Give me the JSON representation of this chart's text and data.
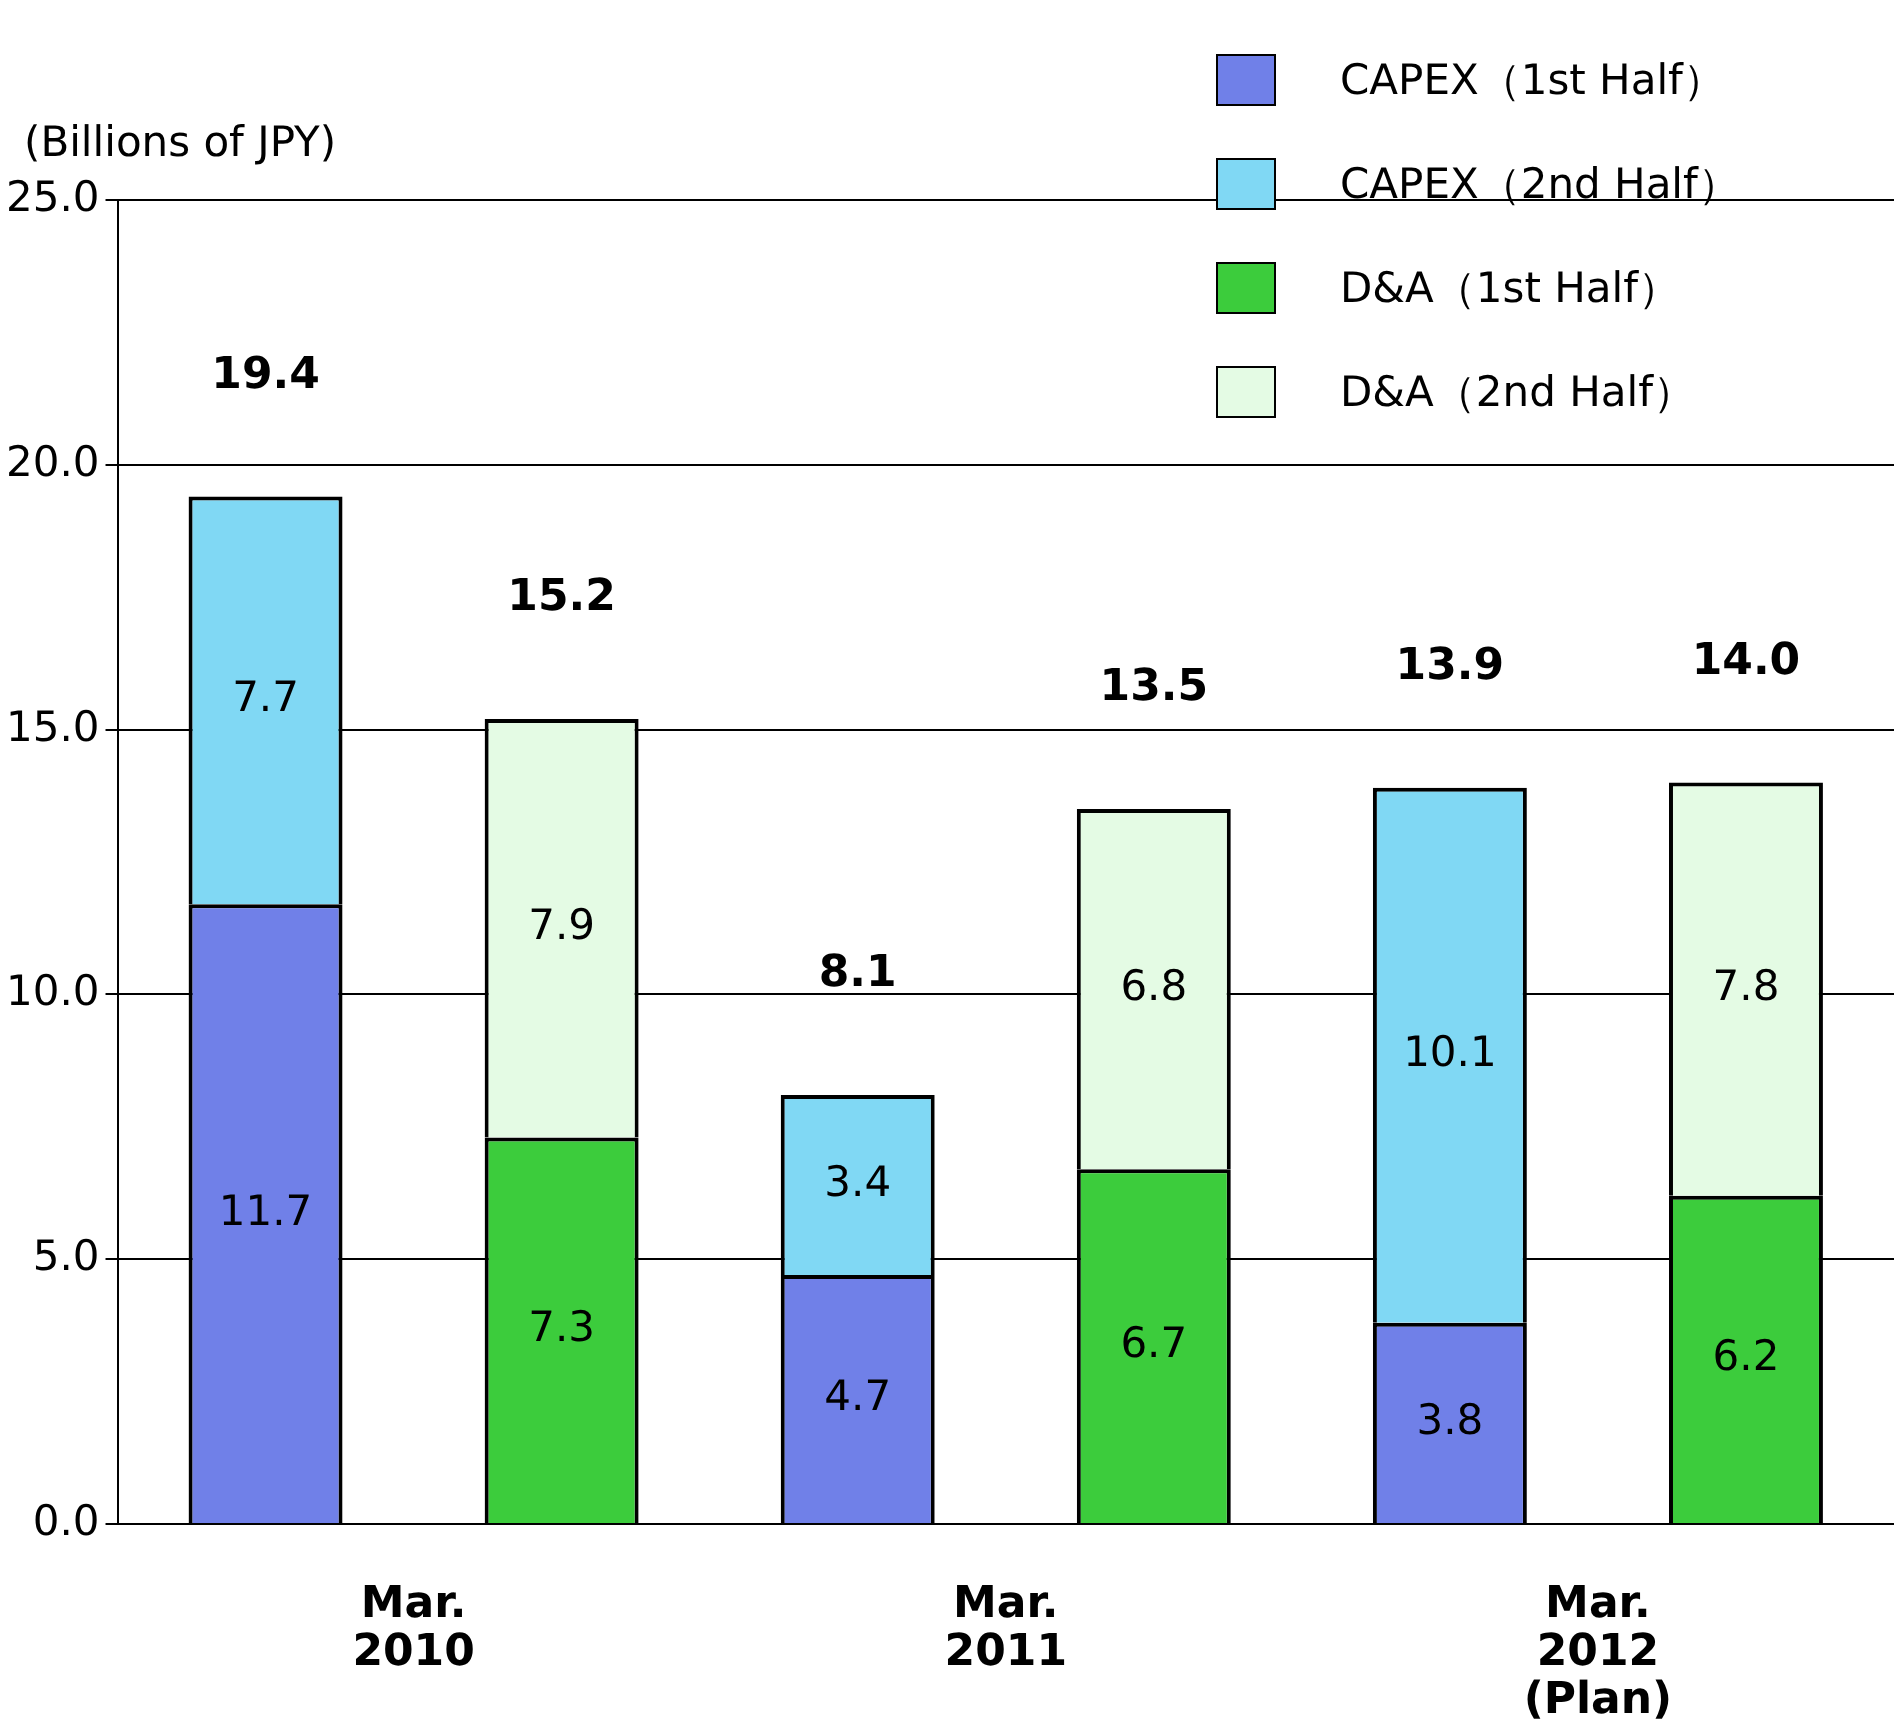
{
  "chart_data": {
    "type": "bar",
    "stacked": true,
    "ylabel": "(Billions of JPY)",
    "categories": [
      "Mar.\n2010",
      null,
      "Mar.\n2011",
      null,
      "Mar.\n2012\n(Plan)",
      null
    ],
    "series": [
      {
        "name": "CAPEX（1st Half）",
        "color": "#7080e8",
        "values": [
          11.7,
          null,
          4.7,
          null,
          3.8,
          null
        ]
      },
      {
        "name": "CAPEX（2nd Half）",
        "color": "#80d8f4",
        "values": [
          7.7,
          null,
          3.4,
          null,
          10.1,
          null
        ]
      },
      {
        "name": "D&A（1st Half）",
        "color": "#3ccc3c",
        "values": [
          null,
          7.3,
          null,
          6.7,
          null,
          6.2
        ]
      },
      {
        "name": "D&A（2nd Half）",
        "color": "#e4fbe4",
        "values": [
          null,
          7.9,
          null,
          6.8,
          null,
          7.8
        ]
      }
    ],
    "totals": [
      "19.4",
      "15.2",
      "8.1",
      "13.5",
      "13.9",
      "14.0"
    ],
    "data_labels": true,
    "ylim": [
      0,
      25
    ],
    "yticks": [
      {
        "value": 0,
        "label": "0.0"
      },
      {
        "value": 5,
        "label": "5.0"
      },
      {
        "value": 10,
        "label": "10.0"
      },
      {
        "value": 15,
        "label": "15.0"
      },
      {
        "value": 20,
        "label": "20.0"
      },
      {
        "value": 25,
        "label": "25.0"
      }
    ],
    "grid": "y",
    "legend": "top right"
  }
}
